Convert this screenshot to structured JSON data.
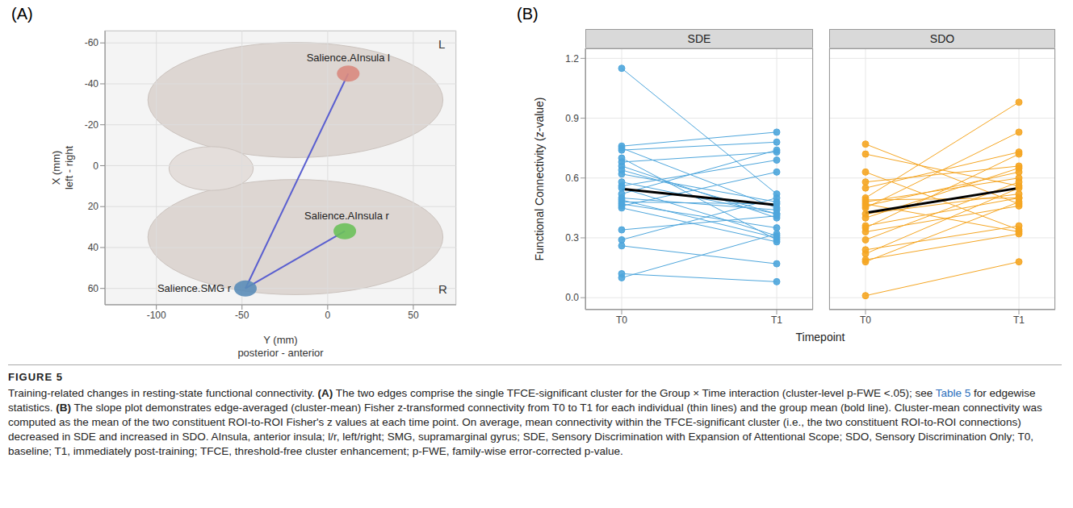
{
  "chart_data": [
    {
      "panel": "(A)",
      "type": "scatter",
      "x_label": "Y (mm)",
      "x_sublabel": "posterior - anterior",
      "y_label": "X (mm)",
      "y_sublabel": "left - right",
      "xlim": [
        -130,
        75
      ],
      "xticks": [
        -100,
        -50,
        0,
        50
      ],
      "ylim": [
        68,
        -66
      ],
      "yticks": [
        -60,
        -40,
        -20,
        0,
        20,
        40,
        60
      ],
      "grid": true,
      "hemisphere_labels": {
        "top": "L",
        "bottom": "R"
      },
      "points": [
        {
          "name": "Salience.AInsula l",
          "x": 12,
          "y": -45,
          "color": "#d98a7e"
        },
        {
          "name": "Salience.AInsula r",
          "x": 10,
          "y": 32,
          "color": "#6cc15a"
        },
        {
          "name": "Salience.SMG r",
          "x": -48,
          "y": 60,
          "color": "#5b8db8"
        }
      ],
      "edges": [
        {
          "from": "Salience.SMG r",
          "to": "Salience.AInsula l",
          "color": "#5a5fd0"
        },
        {
          "from": "Salience.SMG r",
          "to": "Salience.AInsula r",
          "color": "#5a5fd0"
        }
      ]
    },
    {
      "panel": "(B)",
      "type": "line",
      "categories": [
        "T0",
        "T1"
      ],
      "x_label": "Timepoint",
      "y_label": "Functional Connectivity (z-value)",
      "ylim": [
        -0.06,
        1.25
      ],
      "yticks": [
        {
          "value": 0,
          "label": "0.0"
        },
        0.3,
        0.6,
        0.9,
        1.2
      ],
      "grid": true,
      "marker": "circle",
      "facets": [
        {
          "title": "SDE",
          "color": "#4ea6dc",
          "subjects": [
            [
              1.15,
              0.52
            ],
            [
              0.76,
              0.83
            ],
            [
              0.75,
              0.45
            ],
            [
              0.74,
              0.78
            ],
            [
              0.7,
              0.29
            ],
            [
              0.68,
              0.73
            ],
            [
              0.66,
              0.4
            ],
            [
              0.64,
              0.42
            ],
            [
              0.56,
              0.69
            ],
            [
              0.55,
              0.31
            ],
            [
              0.52,
              0.74
            ],
            [
              0.5,
              0.44
            ],
            [
              0.49,
              0.3
            ],
            [
              0.48,
              0.47
            ],
            [
              0.47,
              0.35
            ],
            [
              0.46,
              0.63
            ],
            [
              0.45,
              0.28
            ],
            [
              0.34,
              0.41
            ],
            [
              0.29,
              0.5
            ],
            [
              0.26,
              0.17
            ],
            [
              0.12,
              0.08
            ],
            [
              0.1,
              0.32
            ],
            [
              0.58,
              0.42
            ],
            [
              0.62,
              0.48
            ]
          ],
          "mean": {
            "values": [
              0.545,
              0.465
            ],
            "color": "#000000"
          }
        },
        {
          "title": "SDO",
          "color": "#f5a623",
          "subjects": [
            [
              0.77,
              0.47
            ],
            [
              0.72,
              0.56
            ],
            [
              0.63,
              0.34
            ],
            [
              0.58,
              0.66
            ],
            [
              0.55,
              0.73
            ],
            [
              0.5,
              0.98
            ],
            [
              0.49,
              0.5
            ],
            [
              0.48,
              0.6
            ],
            [
              0.47,
              0.33
            ],
            [
              0.45,
              0.83
            ],
            [
              0.42,
              0.52
            ],
            [
              0.4,
              0.65
            ],
            [
              0.35,
              0.72
            ],
            [
              0.33,
              0.46
            ],
            [
              0.29,
              0.58
            ],
            [
              0.24,
              0.36
            ],
            [
              0.22,
              0.55
            ],
            [
              0.19,
              0.32
            ],
            [
              0.18,
              0.48
            ],
            [
              0.01,
              0.18
            ],
            [
              0.46,
              0.63
            ],
            [
              0.36,
              0.5
            ]
          ],
          "mean": {
            "values": [
              0.425,
              0.55
            ],
            "color": "#000000"
          }
        }
      ]
    }
  ],
  "caption": {
    "label": "FIGURE 5",
    "parts": [
      {
        "text": "Training-related changes in resting-state functional connectivity. "
      },
      {
        "text": "(A)",
        "bold": true
      },
      {
        "text": " The two edges comprise the single TFCE-significant cluster for the Group × Time interaction (cluster-level p-FWE <.05); see "
      },
      {
        "text": "Table 5",
        "link": true
      },
      {
        "text": " for edgewise statistics. "
      },
      {
        "text": "(B)",
        "bold": true
      },
      {
        "text": " The slope plot demonstrates edge-averaged (cluster-mean) Fisher z-transformed connectivity from T0 to T1 for each individual (thin lines) and the group mean (bold line). Cluster-mean connectivity was computed as the mean of the two constituent ROI-to-ROI Fisher's z values at each time point. On average, mean connectivity within the TFCE-significant cluster (i.e., the two constituent ROI-to-ROI connections) decreased in SDE and increased in SDO. AInsula, anterior insula; l/r, left/right; SMG, supramarginal gyrus; SDE, Sensory Discrimination with Expansion of Attentional Scope; SDO, Sensory Discrimination Only; T0, baseline; T1, immediately post-training; TFCE, threshold-free cluster enhancement; p-FWE, family-wise error-corrected p-value."
      }
    ]
  }
}
